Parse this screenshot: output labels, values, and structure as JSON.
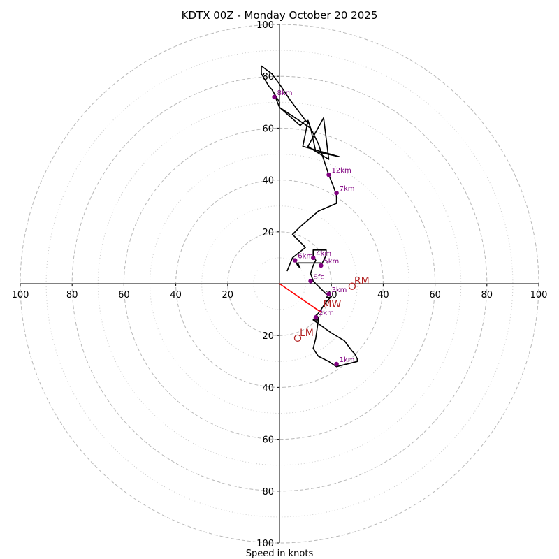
{
  "chart_data": {
    "type": "hodograph",
    "title": "KDTX 00Z - Monday October 20 2025",
    "xlabel": "Speed in knots",
    "axis_range": [
      -100,
      100
    ],
    "ring_major": [
      20,
      40,
      60,
      80,
      100
    ],
    "ring_minor": [
      10,
      30,
      50,
      70,
      90
    ],
    "tick_labels": {
      "right": [
        "20",
        "40",
        "60",
        "80",
        "100"
      ],
      "left": [
        "20",
        "40",
        "60",
        "80",
        "100"
      ],
      "up": [
        "20",
        "40",
        "60",
        "80",
        "100"
      ],
      "down": [
        "20",
        "40",
        "60",
        "80",
        "100"
      ]
    },
    "tick_values": [
      20,
      40,
      60,
      80,
      100
    ],
    "hodograph": [
      [
        14,
        -12
      ],
      [
        15,
        -13
      ],
      [
        15,
        -14
      ],
      [
        13,
        -14
      ],
      [
        20,
        -19
      ],
      [
        25,
        -22
      ],
      [
        28,
        -26
      ],
      [
        29,
        -27
      ],
      [
        30,
        -29
      ],
      [
        30,
        -30
      ],
      [
        22,
        -32
      ],
      [
        19,
        -30
      ],
      [
        15,
        -28
      ],
      [
        13,
        -25
      ],
      [
        14,
        -21
      ],
      [
        15,
        -14
      ],
      [
        13,
        -14
      ],
      [
        16,
        -10
      ],
      [
        18,
        -7
      ],
      [
        20,
        -5
      ],
      [
        18,
        -4
      ],
      [
        16,
        -2
      ],
      [
        15,
        -1
      ],
      [
        13,
        1
      ],
      [
        12,
        4
      ],
      [
        13,
        7
      ],
      [
        14,
        9
      ],
      [
        13,
        11
      ],
      [
        13,
        13
      ],
      [
        18,
        13
      ],
      [
        18,
        11
      ],
      [
        17,
        9
      ],
      [
        16,
        7
      ],
      [
        16,
        8
      ],
      [
        13,
        8
      ],
      [
        11,
        8
      ],
      [
        7,
        8
      ],
      [
        8,
        6
      ],
      [
        7,
        7
      ],
      [
        6,
        9
      ],
      [
        5,
        10
      ],
      [
        3,
        5
      ],
      [
        5,
        10
      ],
      [
        10,
        14
      ],
      [
        5,
        19
      ],
      [
        8,
        22
      ],
      [
        15,
        28
      ],
      [
        22,
        31
      ],
      [
        22,
        34
      ],
      [
        21,
        37
      ],
      [
        19,
        42
      ],
      [
        17,
        48
      ],
      [
        15,
        54
      ],
      [
        12,
        60
      ],
      [
        11,
        63
      ],
      [
        9,
        53
      ],
      [
        23,
        49
      ],
      [
        14,
        51
      ],
      [
        11,
        53
      ],
      [
        17,
        64
      ],
      [
        19,
        48
      ],
      [
        14,
        51
      ],
      [
        12,
        60
      ],
      [
        0,
        68
      ],
      [
        0,
        70
      ],
      [
        -3,
        75
      ],
      [
        -4,
        76
      ],
      [
        -7,
        81
      ],
      [
        -7,
        84
      ],
      [
        -3,
        81
      ],
      [
        0,
        77
      ],
      [
        4,
        71
      ],
      [
        10,
        63
      ],
      [
        11,
        62
      ],
      [
        10,
        63
      ],
      [
        8,
        61
      ],
      [
        0,
        68
      ],
      [
        -2,
        73
      ]
    ],
    "height_labels": [
      {
        "label": "Sfc",
        "u": 12,
        "v": 1
      },
      {
        "label": "1km",
        "u": 22,
        "v": -31
      },
      {
        "label": "2km",
        "u": 14,
        "v": -13
      },
      {
        "label": "3km",
        "u": 19,
        "v": -4
      },
      {
        "label": "4km",
        "u": 13,
        "v": 10
      },
      {
        "label": "5km",
        "u": 16,
        "v": 7
      },
      {
        "label": "6km",
        "u": 6,
        "v": 9
      },
      {
        "label": "7km",
        "u": 22,
        "v": 35
      },
      {
        "label": "8km",
        "u": -2,
        "v": 72
      },
      {
        "label": "12km",
        "u": 19,
        "v": 42
      }
    ],
    "storm_motions": [
      {
        "label": "RM",
        "u": 28,
        "v": -1,
        "marker": "circle"
      },
      {
        "label": "LM",
        "u": 7,
        "v": -21,
        "marker": "circle"
      },
      {
        "label": "MW",
        "u": 16,
        "v": -10,
        "marker": "none"
      }
    ],
    "mean_wind_vector": {
      "u": 16,
      "v": -11
    },
    "colors": {
      "hodograph": "#000000",
      "height_points": "#800080",
      "storm_motion": "#b22222",
      "vector": "#ff0000",
      "grid_major": "#b8b8b8",
      "grid_minor": "#cccccc"
    }
  }
}
